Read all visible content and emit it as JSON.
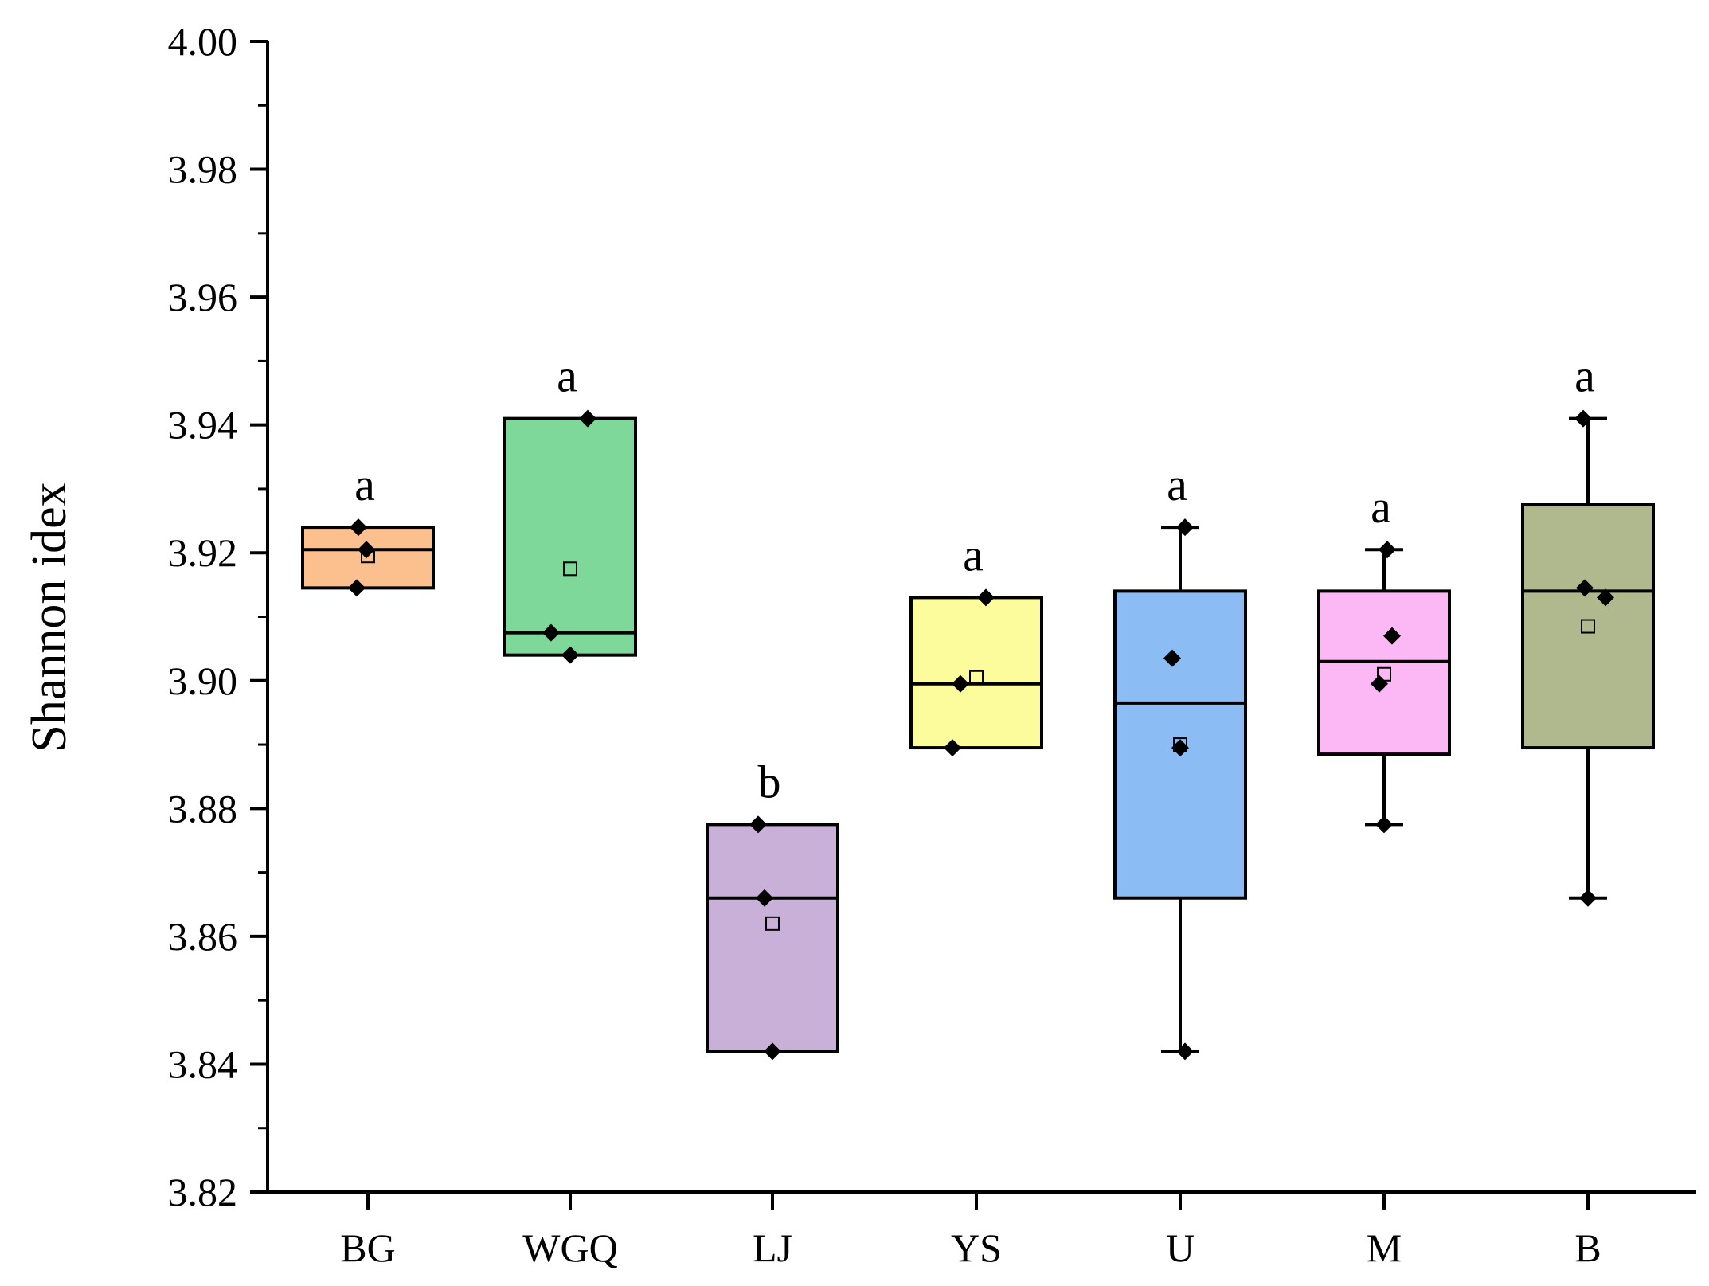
{
  "chart_data": {
    "type": "box",
    "title": "",
    "xlabel": "",
    "ylabel": "Shannon idex",
    "ylim": [
      3.82,
      4.0
    ],
    "yticks": [
      "3.82",
      "3.84",
      "3.86",
      "3.88",
      "3.90",
      "3.92",
      "3.94",
      "3.96",
      "3.98",
      "4.00"
    ],
    "categories": [
      "BG",
      "WGQ",
      "LJ",
      "YS",
      "U",
      "M",
      "B"
    ],
    "groups": [
      {
        "name": "BG",
        "color": "#FBC08E",
        "q1": 3.9145,
        "median": 3.9205,
        "q3": 3.924,
        "whisker_low": 3.9145,
        "whisker_high": 3.924,
        "mean": 3.9195,
        "points": [
          3.924,
          3.9205,
          3.9145
        ],
        "sig": "a"
      },
      {
        "name": "WGQ",
        "color": "#7ED89A",
        "q1": 3.904,
        "median": 3.9075,
        "q3": 3.941,
        "whisker_low": 3.904,
        "whisker_high": 3.941,
        "mean": 3.9175,
        "points": [
          3.941,
          3.9075,
          3.904
        ],
        "sig": "a"
      },
      {
        "name": "LJ",
        "color": "#C8B0D8",
        "q1": 3.842,
        "median": 3.866,
        "q3": 3.8775,
        "whisker_low": 3.842,
        "whisker_high": 3.8775,
        "mean": 3.862,
        "points": [
          3.8775,
          3.866,
          3.842
        ],
        "sig": "b"
      },
      {
        "name": "YS",
        "color": "#FCFC9C",
        "q1": 3.8895,
        "median": 3.8995,
        "q3": 3.913,
        "whisker_low": 3.8895,
        "whisker_high": 3.913,
        "mean": 3.9005,
        "points": [
          3.913,
          3.8995,
          3.8895
        ],
        "sig": "a"
      },
      {
        "name": "U",
        "color": "#8CBCF4",
        "q1": 3.866,
        "median": 3.8965,
        "q3": 3.914,
        "whisker_low": 3.842,
        "whisker_high": 3.924,
        "mean": 3.89,
        "points": [
          3.924,
          3.9035,
          3.8895,
          3.842
        ],
        "sig": "a"
      },
      {
        "name": "M",
        "color": "#FCB8F4",
        "q1": 3.8885,
        "median": 3.903,
        "q3": 3.914,
        "whisker_low": 3.8775,
        "whisker_high": 3.9205,
        "mean": 3.901,
        "points": [
          3.9205,
          3.907,
          3.8995,
          3.8775
        ],
        "sig": "a"
      },
      {
        "name": "B",
        "color": "#B0B88E",
        "q1": 3.8895,
        "median": 3.914,
        "q3": 3.9275,
        "whisker_low": 3.866,
        "whisker_high": 3.941,
        "mean": 3.9085,
        "points": [
          3.941,
          3.9145,
          3.913,
          3.866
        ],
        "sig": "a"
      }
    ]
  }
}
